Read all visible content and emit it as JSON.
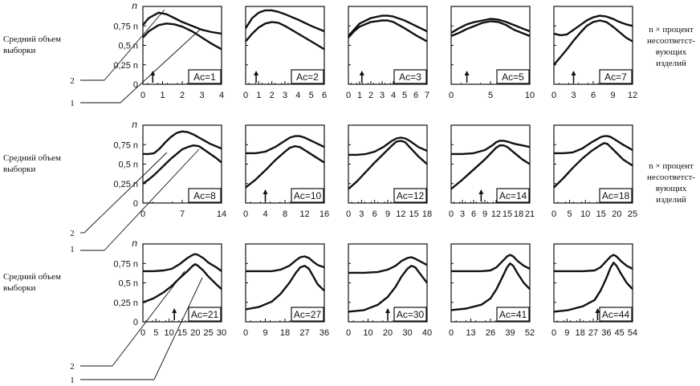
{
  "labels": {
    "ylabel_line1": "Средний объем",
    "ylabel_line2": "выборки",
    "xlabel_line1": "n × процент",
    "xlabel_line2": "несоответст-",
    "xlabel_line3": "вующих",
    "xlabel_line4": "изделий",
    "curve1": "1",
    "curve2": "2"
  },
  "chart_data": [
    {
      "type": "line",
      "row": 0,
      "col": 0,
      "annotation": "Ac=1",
      "ylabel": "n",
      "yticks": [
        "0,25 n",
        "0,5 n",
        "0,75 n",
        "0"
      ],
      "xticks": [
        "0",
        "1",
        "2",
        "3",
        "4"
      ],
      "xlim": [
        0,
        4
      ],
      "ylim": [
        0,
        1
      ],
      "arrow": 0.5,
      "series": [
        {
          "x": [
            0,
            0.3,
            0.8,
            1.2,
            1.6,
            2.0,
            2.5,
            3.0,
            3.5,
            4.0
          ],
          "y": [
            0.76,
            0.85,
            0.92,
            0.9,
            0.85,
            0.8,
            0.75,
            0.7,
            0.67,
            0.65
          ]
        },
        {
          "x": [
            0,
            0.3,
            0.8,
            1.2,
            1.6,
            2.0,
            2.5,
            3.0,
            3.5,
            4.0
          ],
          "y": [
            0.6,
            0.68,
            0.76,
            0.78,
            0.77,
            0.74,
            0.68,
            0.6,
            0.52,
            0.45
          ]
        }
      ]
    },
    {
      "type": "line",
      "row": 0,
      "col": 1,
      "annotation": "Ac=2",
      "xticks": [
        "0",
        "1",
        "2",
        "3",
        "4",
        "5",
        "6"
      ],
      "xlim": [
        0,
        6
      ],
      "ylim": [
        0,
        1
      ],
      "arrow": 0.8,
      "series": [
        {
          "x": [
            0,
            0.5,
            1.0,
            1.5,
            2.0,
            2.5,
            3.0,
            4.0,
            5.0,
            6.0
          ],
          "y": [
            0.72,
            0.85,
            0.92,
            0.95,
            0.95,
            0.93,
            0.9,
            0.83,
            0.75,
            0.68
          ]
        },
        {
          "x": [
            0,
            0.5,
            1.0,
            1.5,
            2.0,
            2.5,
            3.0,
            4.0,
            5.0,
            6.0
          ],
          "y": [
            0.55,
            0.65,
            0.73,
            0.78,
            0.8,
            0.79,
            0.75,
            0.65,
            0.55,
            0.45
          ]
        }
      ]
    },
    {
      "type": "line",
      "row": 0,
      "col": 2,
      "annotation": "Ac=3",
      "xticks": [
        "0",
        "1",
        "2",
        "3",
        "4",
        "5",
        "6",
        "7"
      ],
      "xlim": [
        0,
        7
      ],
      "ylim": [
        0,
        1
      ],
      "arrow": 1.2,
      "series": [
        {
          "x": [
            0,
            0.5,
            1,
            2,
            3,
            3.5,
            4,
            5,
            6,
            7
          ],
          "y": [
            0.62,
            0.7,
            0.78,
            0.85,
            0.88,
            0.88,
            0.87,
            0.82,
            0.75,
            0.68
          ]
        },
        {
          "x": [
            0,
            0.5,
            1,
            2,
            3,
            3.5,
            4,
            5,
            6,
            7
          ],
          "y": [
            0.6,
            0.68,
            0.74,
            0.8,
            0.82,
            0.82,
            0.8,
            0.72,
            0.63,
            0.55
          ]
        }
      ]
    },
    {
      "type": "line",
      "row": 0,
      "col": 3,
      "annotation": "Ac=5",
      "xticks": [
        "0",
        "5",
        "10"
      ],
      "xlim": [
        0,
        10
      ],
      "ylim": [
        0,
        1
      ],
      "arrow": 2.0,
      "series": [
        {
          "x": [
            0,
            1,
            2,
            3,
            4,
            5,
            6,
            7,
            8,
            9,
            10
          ],
          "y": [
            0.66,
            0.72,
            0.77,
            0.8,
            0.82,
            0.84,
            0.83,
            0.8,
            0.76,
            0.72,
            0.68
          ]
        },
        {
          "x": [
            0,
            1,
            2,
            3,
            4,
            5,
            6,
            7,
            8,
            9,
            10
          ],
          "y": [
            0.62,
            0.66,
            0.71,
            0.75,
            0.79,
            0.81,
            0.8,
            0.76,
            0.7,
            0.66,
            0.62
          ]
        }
      ]
    },
    {
      "type": "line",
      "row": 0,
      "col": 4,
      "annotation": "Ac=7",
      "xticks": [
        "0",
        "3",
        "6",
        "9",
        "12"
      ],
      "xlim": [
        0,
        12
      ],
      "ylim": [
        0,
        1
      ],
      "arrow": 3.0,
      "series": [
        {
          "x": [
            0,
            1,
            2,
            3,
            4,
            5,
            6,
            7,
            8,
            9,
            10,
            11,
            12
          ],
          "y": [
            0.65,
            0.63,
            0.64,
            0.7,
            0.76,
            0.82,
            0.86,
            0.88,
            0.87,
            0.84,
            0.8,
            0.77,
            0.75
          ]
        },
        {
          "x": [
            0,
            1,
            2,
            3,
            4,
            5,
            6,
            7,
            8,
            9,
            10,
            11,
            12
          ],
          "y": [
            0.25,
            0.35,
            0.45,
            0.56,
            0.66,
            0.75,
            0.8,
            0.82,
            0.8,
            0.74,
            0.67,
            0.6,
            0.55
          ]
        }
      ]
    },
    {
      "type": "line",
      "row": 1,
      "col": 0,
      "annotation": "Ac=8",
      "ylabel": "n",
      "yticks": [
        "0,25 n",
        "0,5 n",
        "0,75 n",
        "0"
      ],
      "xticks": [
        "0",
        "7",
        "14"
      ],
      "xlim": [
        0,
        14
      ],
      "ylim": [
        0,
        1
      ],
      "arrow": null,
      "series": [
        {
          "x": [
            0,
            1,
            2,
            3,
            4,
            5,
            6,
            7,
            8,
            9,
            10,
            11,
            12,
            13,
            14
          ],
          "y": [
            0.63,
            0.63,
            0.64,
            0.7,
            0.78,
            0.85,
            0.9,
            0.92,
            0.91,
            0.88,
            0.84,
            0.8,
            0.76,
            0.73,
            0.7
          ]
        },
        {
          "x": [
            0,
            1,
            2,
            3,
            4,
            5,
            6,
            7,
            8,
            9,
            10,
            11,
            12,
            13,
            14
          ],
          "y": [
            0.25,
            0.3,
            0.36,
            0.43,
            0.5,
            0.57,
            0.63,
            0.69,
            0.72,
            0.74,
            0.73,
            0.68,
            0.63,
            0.58,
            0.52
          ]
        }
      ]
    },
    {
      "type": "line",
      "row": 1,
      "col": 1,
      "annotation": "Ac=10",
      "xticks": [
        "0",
        "4",
        "8",
        "12",
        "16"
      ],
      "xlim": [
        0,
        16
      ],
      "ylim": [
        0,
        1
      ],
      "arrow": 4.0,
      "series": [
        {
          "x": [
            0,
            2,
            4,
            6,
            8,
            9,
            10,
            11,
            12,
            14,
            16
          ],
          "y": [
            0.64,
            0.64,
            0.66,
            0.72,
            0.8,
            0.84,
            0.86,
            0.86,
            0.84,
            0.78,
            0.72
          ]
        },
        {
          "x": [
            0,
            2,
            4,
            6,
            8,
            9,
            10,
            11,
            12,
            14,
            16
          ],
          "y": [
            0.2,
            0.3,
            0.42,
            0.55,
            0.66,
            0.71,
            0.73,
            0.72,
            0.68,
            0.6,
            0.52
          ]
        }
      ]
    },
    {
      "type": "line",
      "row": 1,
      "col": 2,
      "annotation": "Ac=12",
      "xticks": [
        "0",
        "3",
        "6",
        "9",
        "12",
        "15",
        "18"
      ],
      "xlim": [
        0,
        18
      ],
      "ylim": [
        0,
        1
      ],
      "arrow": null,
      "series": [
        {
          "x": [
            0,
            2,
            4,
            6,
            8,
            10,
            11,
            12,
            13,
            14,
            16,
            18
          ],
          "y": [
            0.62,
            0.62,
            0.63,
            0.66,
            0.72,
            0.8,
            0.83,
            0.84,
            0.83,
            0.8,
            0.72,
            0.67
          ]
        },
        {
          "x": [
            0,
            2,
            4,
            6,
            8,
            10,
            11,
            12,
            13,
            14,
            16,
            18
          ],
          "y": [
            0.18,
            0.28,
            0.4,
            0.52,
            0.63,
            0.74,
            0.79,
            0.8,
            0.78,
            0.72,
            0.6,
            0.5
          ]
        }
      ]
    },
    {
      "type": "line",
      "row": 1,
      "col": 3,
      "annotation": "Ac=14",
      "xticks": [
        "0",
        "3",
        "6",
        "9",
        "12",
        "15",
        "18",
        "21"
      ],
      "xlim": [
        0,
        21
      ],
      "ylim": [
        0,
        1
      ],
      "arrow": 8.0,
      "series": [
        {
          "x": [
            0,
            3,
            6,
            9,
            11,
            12,
            13,
            14,
            15,
            17,
            19,
            21
          ],
          "y": [
            0.63,
            0.63,
            0.64,
            0.68,
            0.74,
            0.78,
            0.8,
            0.8,
            0.79,
            0.76,
            0.74,
            0.72
          ]
        },
        {
          "x": [
            0,
            3,
            6,
            9,
            11,
            12,
            13,
            14,
            15,
            17,
            19,
            21
          ],
          "y": [
            0.18,
            0.3,
            0.43,
            0.56,
            0.66,
            0.71,
            0.74,
            0.74,
            0.72,
            0.64,
            0.56,
            0.5
          ]
        }
      ]
    },
    {
      "type": "line",
      "row": 1,
      "col": 4,
      "annotation": "Ac=18",
      "xticks": [
        "0",
        "5",
        "10",
        "15",
        "20",
        "25"
      ],
      "xlim": [
        0,
        25
      ],
      "ylim": [
        0,
        1
      ],
      "arrow": null,
      "series": [
        {
          "x": [
            0,
            3,
            6,
            9,
            12,
            15,
            16,
            17,
            18,
            20,
            22,
            25
          ],
          "y": [
            0.64,
            0.64,
            0.65,
            0.7,
            0.78,
            0.85,
            0.86,
            0.86,
            0.85,
            0.8,
            0.75,
            0.68
          ]
        },
        {
          "x": [
            0,
            3,
            6,
            9,
            12,
            15,
            16,
            17,
            18,
            20,
            22,
            25
          ],
          "y": [
            0.2,
            0.32,
            0.45,
            0.57,
            0.67,
            0.75,
            0.77,
            0.76,
            0.72,
            0.64,
            0.56,
            0.48
          ]
        }
      ]
    },
    {
      "type": "line",
      "row": 2,
      "col": 0,
      "annotation": "Ac=21",
      "ylabel": "n",
      "yticks": [
        "0,25 n",
        "0,5 n",
        "0,75 n",
        "0"
      ],
      "xticks": [
        "0",
        "5",
        "10",
        "15",
        "20",
        "25",
        "30"
      ],
      "xlim": [
        0,
        30
      ],
      "ylim": [
        0,
        1
      ],
      "arrow": 12,
      "series": [
        {
          "x": [
            0,
            4,
            8,
            11,
            14,
            17,
            19,
            20,
            21,
            23,
            25,
            28,
            30
          ],
          "y": [
            0.65,
            0.65,
            0.66,
            0.68,
            0.74,
            0.82,
            0.86,
            0.87,
            0.86,
            0.82,
            0.76,
            0.7,
            0.65
          ]
        },
        {
          "x": [
            0,
            4,
            8,
            11,
            14,
            17,
            19,
            20,
            21,
            23,
            25,
            28,
            30
          ],
          "y": [
            0.25,
            0.3,
            0.38,
            0.46,
            0.56,
            0.65,
            0.72,
            0.74,
            0.72,
            0.66,
            0.58,
            0.48,
            0.42
          ]
        }
      ]
    },
    {
      "type": "line",
      "row": 2,
      "col": 1,
      "annotation": "Ac=27",
      "xticks": [
        "0",
        "9",
        "18",
        "27",
        "36"
      ],
      "xlim": [
        0,
        36
      ],
      "ylim": [
        0,
        1
      ],
      "arrow": null,
      "series": [
        {
          "x": [
            0,
            6,
            12,
            16,
            20,
            23,
            25,
            27,
            29,
            31,
            33,
            36
          ],
          "y": [
            0.65,
            0.65,
            0.65,
            0.67,
            0.72,
            0.79,
            0.83,
            0.84,
            0.82,
            0.77,
            0.73,
            0.7
          ]
        },
        {
          "x": [
            0,
            6,
            12,
            16,
            20,
            23,
            25,
            27,
            29,
            31,
            33,
            36
          ],
          "y": [
            0.16,
            0.19,
            0.26,
            0.36,
            0.5,
            0.63,
            0.7,
            0.72,
            0.68,
            0.58,
            0.48,
            0.4
          ]
        }
      ]
    },
    {
      "type": "line",
      "row": 2,
      "col": 2,
      "annotation": "Ac=30",
      "xticks": [
        "0",
        "10",
        "20",
        "30",
        "40"
      ],
      "xlim": [
        0,
        40
      ],
      "ylim": [
        0,
        1
      ],
      "arrow": 20,
      "series": [
        {
          "x": [
            0,
            8,
            15,
            20,
            24,
            27,
            30,
            32,
            34,
            37,
            40
          ],
          "y": [
            0.63,
            0.63,
            0.64,
            0.67,
            0.72,
            0.78,
            0.82,
            0.83,
            0.81,
            0.77,
            0.73
          ]
        },
        {
          "x": [
            0,
            8,
            15,
            20,
            24,
            27,
            30,
            32,
            34,
            37,
            40
          ],
          "y": [
            0.13,
            0.15,
            0.22,
            0.32,
            0.45,
            0.58,
            0.68,
            0.72,
            0.7,
            0.6,
            0.5
          ]
        }
      ]
    },
    {
      "type": "line",
      "row": 2,
      "col": 3,
      "annotation": "Ac=41",
      "xticks": [
        "0",
        "13",
        "26",
        "39",
        "52"
      ],
      "xlim": [
        0,
        52
      ],
      "ylim": [
        0,
        1
      ],
      "arrow": null,
      "series": [
        {
          "x": [
            0,
            10,
            20,
            26,
            30,
            34,
            37,
            39,
            41,
            44,
            48,
            52
          ],
          "y": [
            0.65,
            0.65,
            0.65,
            0.66,
            0.7,
            0.78,
            0.84,
            0.86,
            0.84,
            0.78,
            0.72,
            0.68
          ]
        },
        {
          "x": [
            0,
            10,
            20,
            26,
            30,
            34,
            37,
            39,
            41,
            44,
            48,
            52
          ],
          "y": [
            0.15,
            0.17,
            0.22,
            0.3,
            0.42,
            0.58,
            0.7,
            0.75,
            0.72,
            0.62,
            0.5,
            0.42
          ]
        }
      ]
    },
    {
      "type": "line",
      "row": 2,
      "col": 4,
      "annotation": "Ac=44",
      "xticks": [
        "0",
        "9",
        "18",
        "27",
        "36",
        "45",
        "54"
      ],
      "xlim": [
        0,
        54
      ],
      "ylim": [
        0,
        1
      ],
      "arrow": 30,
      "series": [
        {
          "x": [
            0,
            10,
            20,
            28,
            32,
            36,
            39,
            41,
            43,
            46,
            50,
            54
          ],
          "y": [
            0.65,
            0.65,
            0.65,
            0.66,
            0.7,
            0.78,
            0.84,
            0.86,
            0.84,
            0.78,
            0.72,
            0.68
          ]
        },
        {
          "x": [
            0,
            10,
            20,
            28,
            32,
            36,
            39,
            41,
            43,
            46,
            50,
            54
          ],
          "y": [
            0.13,
            0.15,
            0.2,
            0.28,
            0.4,
            0.56,
            0.7,
            0.76,
            0.72,
            0.62,
            0.5,
            0.42
          ]
        }
      ]
    }
  ]
}
